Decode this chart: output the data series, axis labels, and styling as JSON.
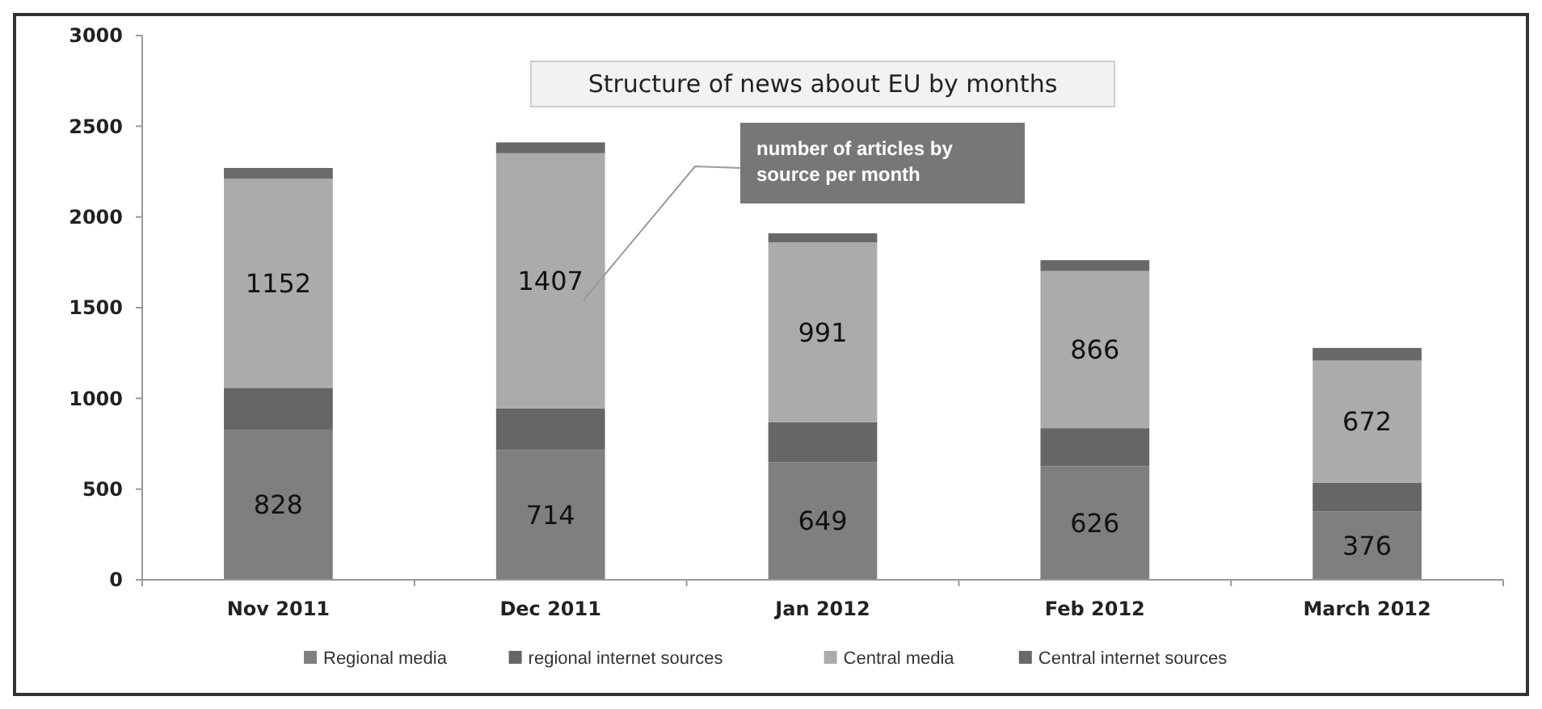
{
  "chart_data": {
    "type": "bar",
    "stacked": true,
    "title": "Structure of news about EU by months",
    "categories": [
      "Nov 2011",
      "Dec 2011",
      "Jan 2012",
      "Feb 2012",
      "March 2012"
    ],
    "series": [
      {
        "name": "Regional media",
        "color": "#7f7f7f",
        "values": [
          828,
          714,
          649,
          626,
          376
        ],
        "value_labels": [
          "828",
          "714",
          "649",
          "626",
          "376"
        ]
      },
      {
        "name": "regional internet sources",
        "color": "#666666",
        "values": [
          230,
          230,
          220,
          210,
          160
        ]
      },
      {
        "name": "Central media",
        "color": "#ababab",
        "values": [
          1152,
          1407,
          991,
          866,
          672
        ],
        "value_labels": [
          "1152",
          "1407",
          "991",
          "866",
          "672"
        ]
      },
      {
        "name": "Central internet sources",
        "color": "#696969",
        "values": [
          60,
          60,
          50,
          60,
          70
        ]
      }
    ],
    "ylim": [
      0,
      3000
    ],
    "yticks": [
      0,
      500,
      1000,
      1500,
      2000,
      2500,
      3000
    ],
    "grid": false,
    "legend": "bottom",
    "annotations": [
      "number of articles by source per month"
    ]
  }
}
